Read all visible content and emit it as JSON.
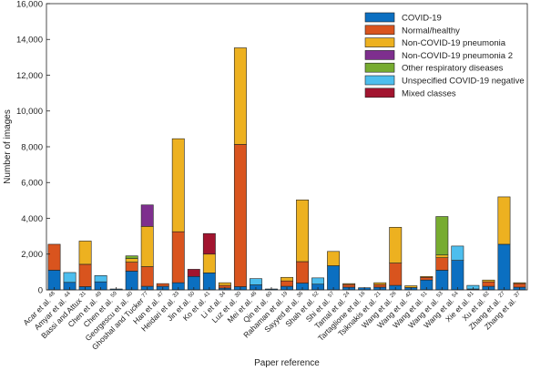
{
  "chart_data": {
    "type": "bar",
    "stacked": true,
    "xlabel": "Paper reference",
    "ylabel": "Number of images",
    "ylim": [
      0,
      16000
    ],
    "yticks": [
      "0",
      "2,000",
      "4,000",
      "6,000",
      "8,000",
      "10,000",
      "12,000",
      "14,000",
      "16,000"
    ],
    "grid": false,
    "legend_position": "top-right",
    "categories": [
      {
        "name": "Acar et al.",
        "ref": "48"
      },
      {
        "name": "Amyar et al.",
        "ref": "44"
      },
      {
        "name": "Bassi and Attux",
        "ref": "31"
      },
      {
        "name": "Chen et al.",
        "ref": "49"
      },
      {
        "name": "Chen et al.",
        "ref": "59"
      },
      {
        "name": "Georgescu et al.",
        "ref": "40"
      },
      {
        "name": "Ghoshal and Tucker",
        "ref": "77"
      },
      {
        "name": "Han et al.",
        "ref": "47"
      },
      {
        "name": "Heidari et al.",
        "ref": "33"
      },
      {
        "name": "Jin et al.",
        "ref": "50"
      },
      {
        "name": "Ko et al.",
        "ref": "41"
      },
      {
        "name": "Li et al.",
        "ref": "34"
      },
      {
        "name": "Luz et al.",
        "ref": "30"
      },
      {
        "name": "Mei et al.",
        "ref": "46"
      },
      {
        "name": "Qin et al.",
        "ref": "60"
      },
      {
        "name": "Rahaman et al.",
        "ref": "19"
      },
      {
        "name": "Sayyed et al.",
        "ref": "36"
      },
      {
        "name": "Shah et al.",
        "ref": "52"
      },
      {
        "name": "Shi et al.",
        "ref": "57"
      },
      {
        "name": "Tamal et al.",
        "ref": "24"
      },
      {
        "name": "Tartaglione et al.",
        "ref": "16"
      },
      {
        "name": "Tsiknakis et al.",
        "ref": "21"
      },
      {
        "name": "Wang et al.",
        "ref": "26"
      },
      {
        "name": "Wang et al.",
        "ref": "42"
      },
      {
        "name": "Wang et al.",
        "ref": "51"
      },
      {
        "name": "Wang et al.",
        "ref": "53"
      },
      {
        "name": "Wang et al.",
        "ref": "54"
      },
      {
        "name": "Xie et al.",
        "ref": "61"
      },
      {
        "name": "Xu et al.",
        "ref": "62"
      },
      {
        "name": "Zhang et al.",
        "ref": "27"
      },
      {
        "name": "Zhang et al.",
        "ref": "37"
      }
    ],
    "series": [
      {
        "name": "COVID-19",
        "color": "#0b6fc1",
        "values": [
          1100,
          420,
          180,
          450,
          50,
          1050,
          200,
          200,
          400,
          750,
          950,
          100,
          180,
          280,
          50,
          200,
          380,
          320,
          1350,
          150,
          120,
          150,
          250,
          130,
          550,
          1100,
          1650,
          50,
          200,
          2550,
          150
        ]
      },
      {
        "name": "Normal/healthy",
        "color": "#d9541e",
        "values": [
          1450,
          0,
          1250,
          0,
          0,
          500,
          1100,
          150,
          2850,
          0,
          0,
          150,
          7950,
          0,
          0,
          300,
          1200,
          0,
          0,
          150,
          0,
          150,
          1250,
          0,
          150,
          700,
          0,
          0,
          250,
          0,
          200
        ]
      },
      {
        "name": "Non-COVID-19 pneumonia",
        "color": "#edb120",
        "values": [
          0,
          0,
          1300,
          0,
          0,
          200,
          2250,
          0,
          5200,
          0,
          1050,
          150,
          5400,
          0,
          0,
          200,
          3450,
          0,
          800,
          50,
          0,
          100,
          2000,
          100,
          50,
          150,
          0,
          0,
          100,
          2650,
          50
        ]
      },
      {
        "name": "Non-COVID-19 pneumonia 2",
        "color": "#7e2f8e",
        "values": [
          0,
          0,
          0,
          0,
          0,
          0,
          1200,
          0,
          0,
          0,
          0,
          0,
          0,
          0,
          0,
          0,
          0,
          0,
          0,
          0,
          0,
          0,
          0,
          0,
          0,
          0,
          0,
          0,
          0,
          0,
          0
        ]
      },
      {
        "name": "Other respiratory diseases",
        "color": "#77ac30",
        "values": [
          0,
          0,
          0,
          0,
          0,
          150,
          0,
          0,
          0,
          0,
          0,
          0,
          0,
          0,
          0,
          0,
          0,
          0,
          0,
          0,
          0,
          0,
          0,
          0,
          0,
          2150,
          0,
          0,
          0,
          0,
          0
        ]
      },
      {
        "name": "Unspecified COVID-19 negative",
        "color": "#4dbeee",
        "values": [
          0,
          550,
          0,
          350,
          0,
          0,
          0,
          0,
          0,
          0,
          0,
          0,
          0,
          350,
          0,
          0,
          0,
          350,
          0,
          0,
          0,
          0,
          0,
          0,
          0,
          0,
          800,
          200,
          0,
          0,
          0
        ]
      },
      {
        "name": "Mixed classes",
        "color": "#a2142f",
        "values": [
          0,
          0,
          0,
          0,
          0,
          0,
          0,
          0,
          0,
          400,
          1150,
          0,
          0,
          0,
          0,
          0,
          0,
          0,
          0,
          0,
          0,
          0,
          0,
          0,
          0,
          0,
          0,
          0,
          0,
          0,
          0
        ]
      }
    ]
  }
}
